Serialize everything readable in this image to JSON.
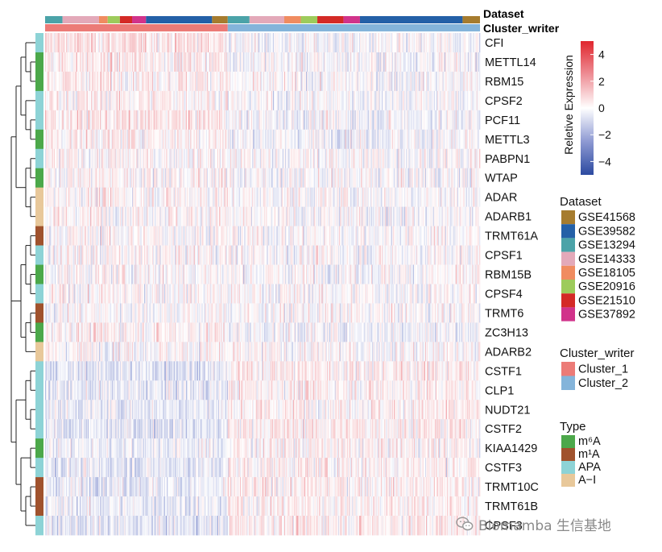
{
  "chart_data": {
    "type": "heatmap",
    "title": "",
    "xlabel": "",
    "ylabel": "",
    "rows": [
      "CFI",
      "METTL14",
      "RBM15",
      "CPSF2",
      "PCF11",
      "METTL3",
      "PABPN1",
      "WTAP",
      "ADAR",
      "ADARB1",
      "TRMT61A",
      "CPSF1",
      "RBM15B",
      "CPSF4",
      "TRMT6",
      "ZC3H13",
      "ADARB2",
      "CSTF1",
      "CLP1",
      "NUDT21",
      "CSTF2",
      "KIAA1429",
      "CSTF3",
      "TRMT10C",
      "TRMT61B",
      "CPSF3"
    ],
    "row_type": [
      "APA",
      "m6A",
      "m6A",
      "APA",
      "APA",
      "m6A",
      "APA",
      "m6A",
      "A-I",
      "A-I",
      "m1A",
      "APA",
      "m6A",
      "APA",
      "m1A",
      "m6A",
      "A-I",
      "APA",
      "APA",
      "APA",
      "APA",
      "m6A",
      "APA",
      "m1A",
      "m1A",
      "APA"
    ],
    "column_count": 500,
    "column_groups": {
      "Cluster_writer": [
        {
          "name": "Cluster_1",
          "start": 0,
          "end": 210
        },
        {
          "name": "Cluster_2",
          "start": 210,
          "end": 500
        }
      ],
      "Dataset": [
        {
          "name": "GSE13294",
          "start": 0,
          "end": 20
        },
        {
          "name": "GSE14333",
          "start": 20,
          "end": 62
        },
        {
          "name": "GSE18105",
          "start": 62,
          "end": 72
        },
        {
          "name": "GSE20916",
          "start": 72,
          "end": 86
        },
        {
          "name": "GSE21510",
          "start": 86,
          "end": 100
        },
        {
          "name": "GSE37892",
          "start": 100,
          "end": 116
        },
        {
          "name": "GSE39582",
          "start": 116,
          "end": 192
        },
        {
          "name": "GSE41568",
          "start": 192,
          "end": 210
        },
        {
          "name": "GSE13294",
          "start": 210,
          "end": 235
        },
        {
          "name": "GSE14333",
          "start": 235,
          "end": 275
        },
        {
          "name": "GSE18105",
          "start": 275,
          "end": 294
        },
        {
          "name": "GSE20916",
          "start": 294,
          "end": 313
        },
        {
          "name": "GSE21510",
          "start": 313,
          "end": 343
        },
        {
          "name": "GSE37892",
          "start": 343,
          "end": 362
        },
        {
          "name": "GSE39582",
          "start": 362,
          "end": 480
        },
        {
          "name": "GSE41568",
          "start": 480,
          "end": 500
        }
      ]
    },
    "cluster_mean_expression": {
      "Cluster_1": [
        0.6,
        0.4,
        0.4,
        0.3,
        0.5,
        0.3,
        0.1,
        0.2,
        0.2,
        0.2,
        0.1,
        0.1,
        0.1,
        0.1,
        0.0,
        0.3,
        0.1,
        -0.6,
        -0.5,
        -0.4,
        -0.6,
        -0.3,
        -0.5,
        -0.4,
        -0.4,
        -0.6
      ],
      "Cluster_2": [
        -0.2,
        -0.1,
        -0.1,
        -0.1,
        -0.2,
        -0.2,
        0.0,
        -0.1,
        0.0,
        -0.1,
        0.0,
        0.0,
        0.0,
        0.0,
        0.0,
        -0.2,
        0.0,
        0.4,
        0.3,
        0.3,
        0.4,
        0.2,
        0.3,
        0.3,
        0.3,
        0.4
      ]
    },
    "color_scale": {
      "title": "Reletive Expression",
      "min": -5,
      "max": 5,
      "ticks": [
        4,
        2,
        0,
        -2,
        -4
      ],
      "tick_labels": [
        "4",
        "2",
        "0",
        "−2",
        "−4"
      ],
      "stops": [
        {
          "value": -5,
          "color": "#2c4aa0"
        },
        {
          "value": -2.5,
          "color": "#8e9ad3"
        },
        {
          "value": 0,
          "color": "#ffffff"
        },
        {
          "value": 2.5,
          "color": "#ee8f96"
        },
        {
          "value": 5,
          "color": "#e0262e"
        }
      ]
    },
    "annotation_titles": {
      "dataset": "Dataset",
      "cluster": "Cluster_writer",
      "type": "Type"
    },
    "legends": {
      "dataset": {
        "title": "Dataset",
        "items": [
          {
            "label": "GSE41568",
            "color": "#a67c2e"
          },
          {
            "label": "GSE39582",
            "color": "#2460a7"
          },
          {
            "label": "GSE13294",
            "color": "#4ba3a8"
          },
          {
            "label": "GSE14333",
            "color": "#e3a9b9"
          },
          {
            "label": "GSE18105",
            "color": "#f08c60"
          },
          {
            "label": "GSE20916",
            "color": "#9dcb5b"
          },
          {
            "label": "GSE21510",
            "color": "#d42a26"
          },
          {
            "label": "GSE37892",
            "color": "#d1338b"
          }
        ]
      },
      "cluster": {
        "title": "Cluster_writer",
        "items": [
          {
            "label": "Cluster_1",
            "color": "#ec7b77"
          },
          {
            "label": "Cluster_2",
            "color": "#84b4da"
          }
        ]
      },
      "type": {
        "title": "Type",
        "items": [
          {
            "key": "m6A",
            "label": "m⁶A",
            "color": "#4ca84a"
          },
          {
            "key": "m1A",
            "label": "m¹A",
            "color": "#a0522d"
          },
          {
            "key": "APA",
            "label": "APA",
            "color": "#8dd3d6"
          },
          {
            "key": "A-I",
            "label": "A−I",
            "color": "#e8c89a"
          }
        ]
      }
    },
    "dendrogram": "hierarchical clustering of rows",
    "grid": false
  },
  "watermark": {
    "text": "Biomamba 生信基地",
    "icon": "wechat-icon"
  }
}
